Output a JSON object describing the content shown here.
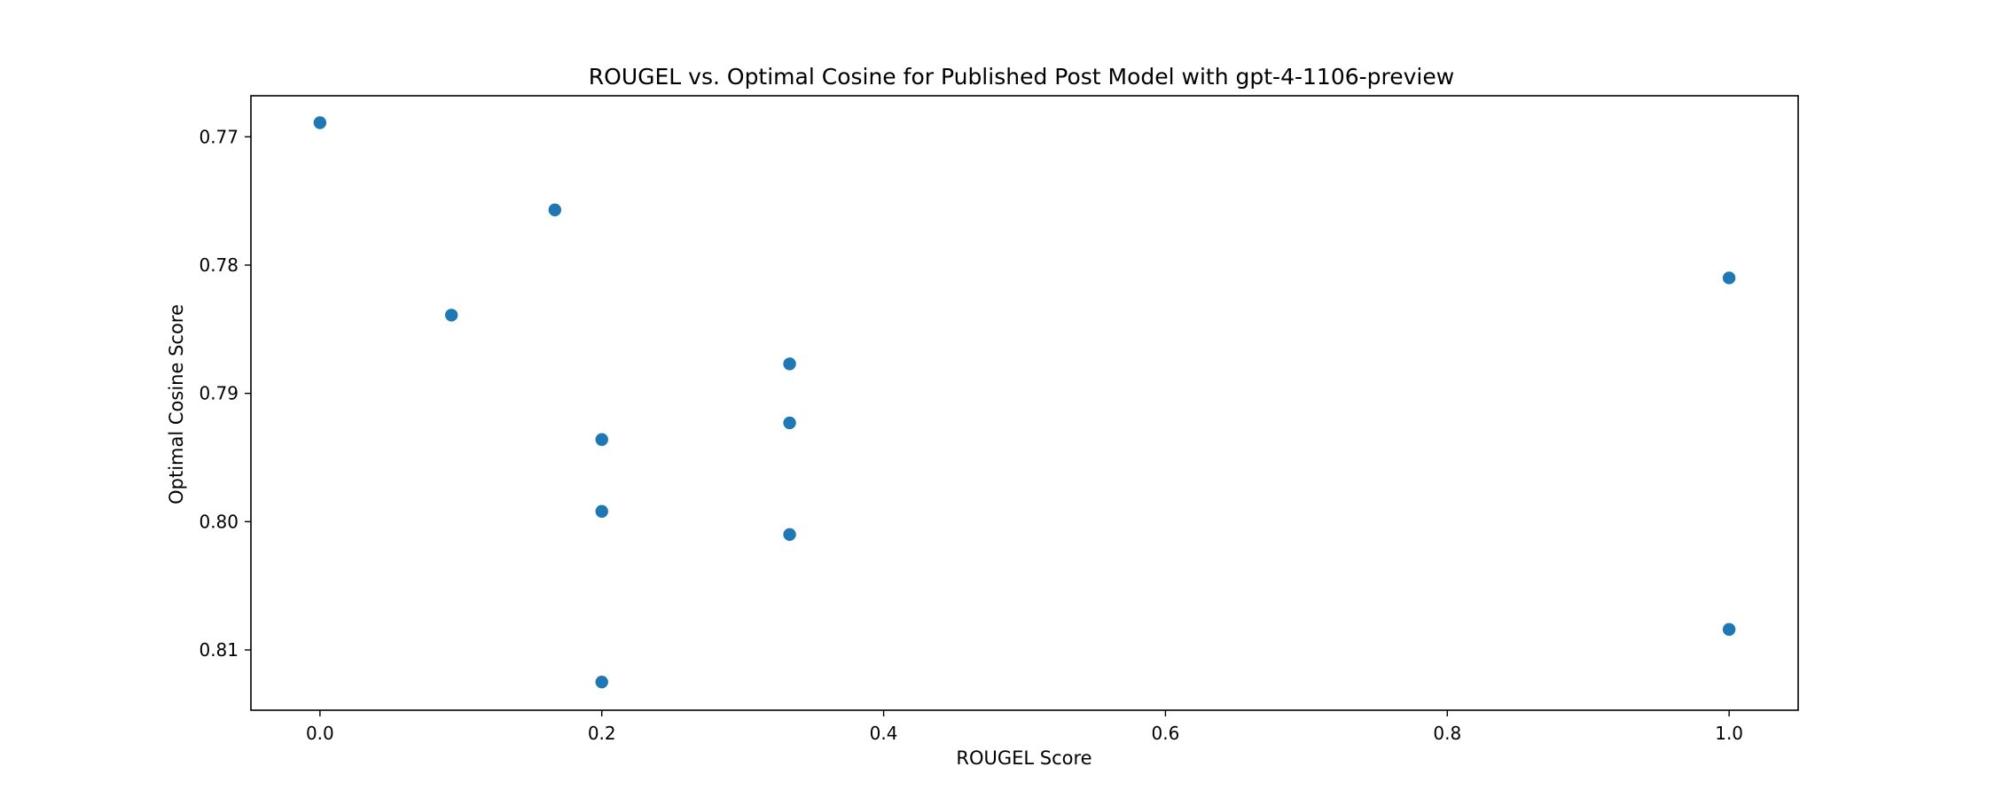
{
  "chart_data": {
    "type": "scatter",
    "title": "ROUGEL vs. Optimal Cosine for Published Post Model with gpt-4-1106-preview",
    "xlabel": "ROUGEL Score",
    "ylabel": "Optimal Cosine Score",
    "xlim": [
      -0.049,
      1.049
    ],
    "ylim": [
      0.8147,
      0.7668
    ],
    "y_inverted": true,
    "grid": false,
    "legend": "none",
    "marker_color": "#1f77b4",
    "x_ticks": [
      0.0,
      0.2,
      0.4,
      0.6,
      0.8,
      1.0
    ],
    "x_tick_labels": [
      "0.0",
      "0.2",
      "0.4",
      "0.6",
      "0.8",
      "1.0"
    ],
    "y_ticks": [
      0.77,
      0.78,
      0.79,
      0.8,
      0.81
    ],
    "y_tick_labels": [
      "0.77",
      "0.78",
      "0.79",
      "0.80",
      "0.81"
    ],
    "points": [
      {
        "x": 0.0,
        "y": 0.7689
      },
      {
        "x": 0.0933,
        "y": 0.7839
      },
      {
        "x": 0.1667,
        "y": 0.7757
      },
      {
        "x": 0.2,
        "y": 0.7936
      },
      {
        "x": 0.2,
        "y": 0.7992
      },
      {
        "x": 0.2,
        "y": 0.8125
      },
      {
        "x": 0.3333,
        "y": 0.7877
      },
      {
        "x": 0.3333,
        "y": 0.7923
      },
      {
        "x": 0.3333,
        "y": 0.801
      },
      {
        "x": 1.0,
        "y": 0.781
      },
      {
        "x": 1.0,
        "y": 0.8084
      }
    ]
  }
}
